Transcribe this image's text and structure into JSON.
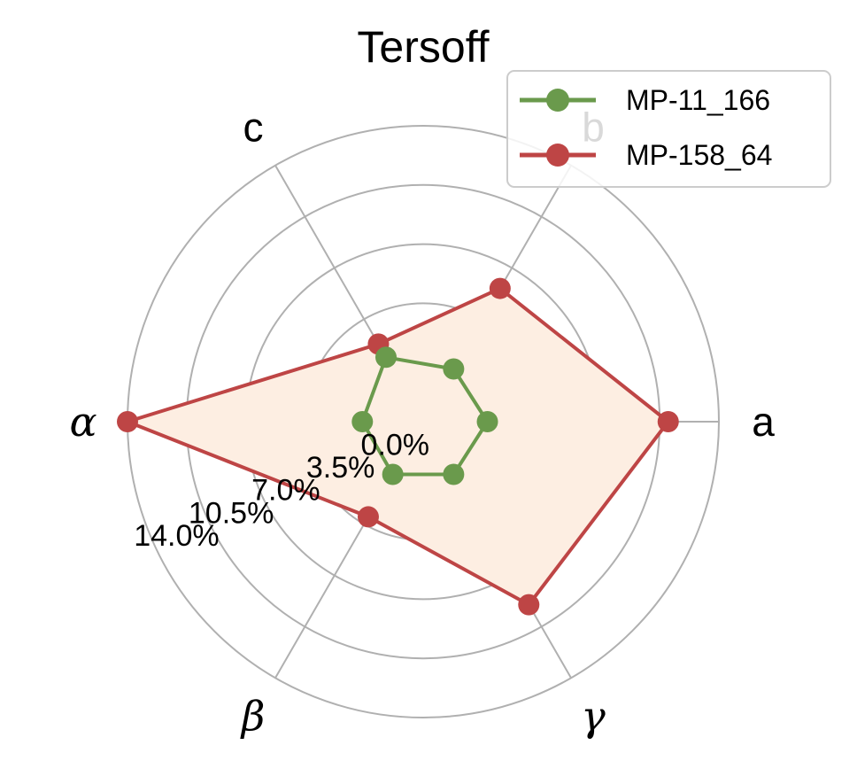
{
  "chart_data": {
    "type": "radar",
    "title": "Tersoff",
    "axes": [
      "a",
      "b",
      "c",
      "α",
      "β",
      "γ"
    ],
    "radial_ticks": [
      0.0,
      3.5,
      7.0,
      10.5,
      14.0
    ],
    "radial_tick_labels": [
      "0.0%",
      "3.5%",
      "7.0%",
      "10.5%",
      "14.0%"
    ],
    "rlim": [
      -3.5,
      14.0
    ],
    "grid": true,
    "legend_position": "top-right",
    "series": [
      {
        "name": "MP-11_166",
        "values": [
          0.3,
          0.1,
          0.9,
          0.1,
          0.1,
          0.1
        ],
        "color": "#6a9a4c",
        "fill": false
      },
      {
        "name": "MP-158_64",
        "values": [
          11.0,
          5.6,
          1.8,
          14.0,
          3.0,
          9.0
        ],
        "color": "#be4545",
        "fill": "#fdeee2"
      }
    ]
  }
}
